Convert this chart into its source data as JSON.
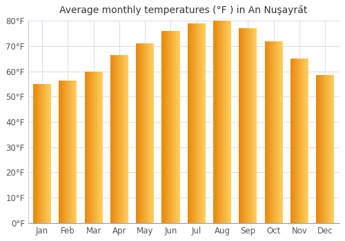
{
  "title": "Average monthly temperatures (°F ) in An Nuşayrāt",
  "months": [
    "Jan",
    "Feb",
    "Mar",
    "Apr",
    "May",
    "Jun",
    "Jul",
    "Aug",
    "Sep",
    "Oct",
    "Nov",
    "Dec"
  ],
  "values": [
    55,
    56.5,
    60,
    66.5,
    71,
    76,
    79,
    80,
    77,
    72,
    65,
    58.5
  ],
  "ylim": [
    0,
    80
  ],
  "yticks": [
    0,
    10,
    20,
    30,
    40,
    50,
    60,
    70,
    80
  ],
  "ytick_labels": [
    "0°F",
    "10°F",
    "20°F",
    "30°F",
    "40°F",
    "50°F",
    "60°F",
    "70°F",
    "80°F"
  ],
  "bar_color_left": "#E8870A",
  "bar_color_right": "#FFD060",
  "background_color": "#ffffff",
  "plot_bg_color": "#ffffff",
  "grid_color": "#ddddee",
  "title_fontsize": 10,
  "tick_fontsize": 8.5
}
